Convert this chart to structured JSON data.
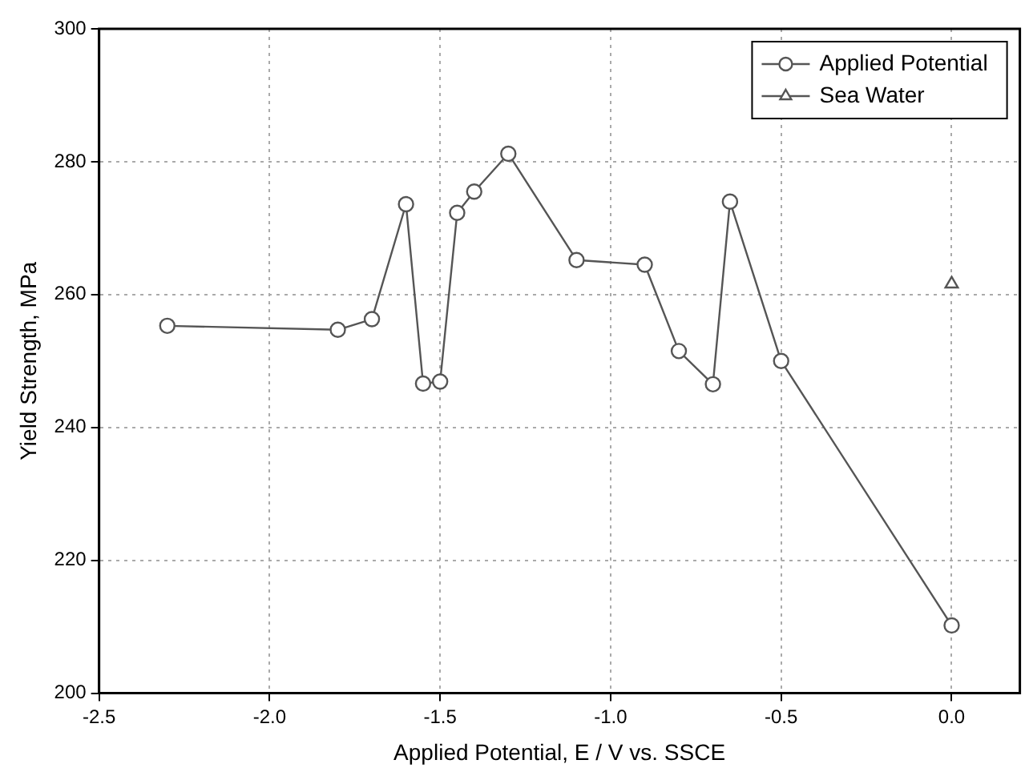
{
  "chart_data": {
    "type": "line",
    "xlabel": "Applied Potential, E / V vs. SSCE",
    "ylabel": "Yield Strength, MPa",
    "xlim": [
      -2.5,
      0.2
    ],
    "xticks": [
      {
        "value": -2.5,
        "label": "-2.5"
      },
      {
        "value": -2.0,
        "label": "-2.0"
      },
      {
        "value": -1.5,
        "label": "-1.5"
      },
      {
        "value": -1.0,
        "label": "-1.0"
      },
      {
        "value": -0.5,
        "label": "-0.5"
      },
      {
        "value": 0.0,
        "label": "0.0"
      }
    ],
    "ylim": [
      200,
      300
    ],
    "yticks": [
      200,
      220,
      240,
      260,
      280,
      300
    ],
    "grid": true,
    "legend": "top right",
    "series": [
      {
        "name": "Applied Potential",
        "type": "line",
        "marker": "circle",
        "color": "#555555",
        "x": [
          -2.3,
          -1.8,
          -1.7,
          -1.6,
          -1.55,
          -1.5,
          -1.45,
          -1.4,
          -1.3,
          -1.1,
          -0.9,
          -0.8,
          -0.7,
          -0.65,
          -0.5,
          0.0
        ],
        "values": [
          255.3,
          254.7,
          256.3,
          273.6,
          246.6,
          246.9,
          272.3,
          275.5,
          281.2,
          265.2,
          264.5,
          251.5,
          246.5,
          274.0,
          250.0,
          210.2
        ]
      },
      {
        "name": "Sea Water",
        "type": "scatter",
        "marker": "triangle",
        "color": "#555555",
        "x": [
          0.0
        ],
        "values": [
          261.6
        ]
      }
    ]
  }
}
